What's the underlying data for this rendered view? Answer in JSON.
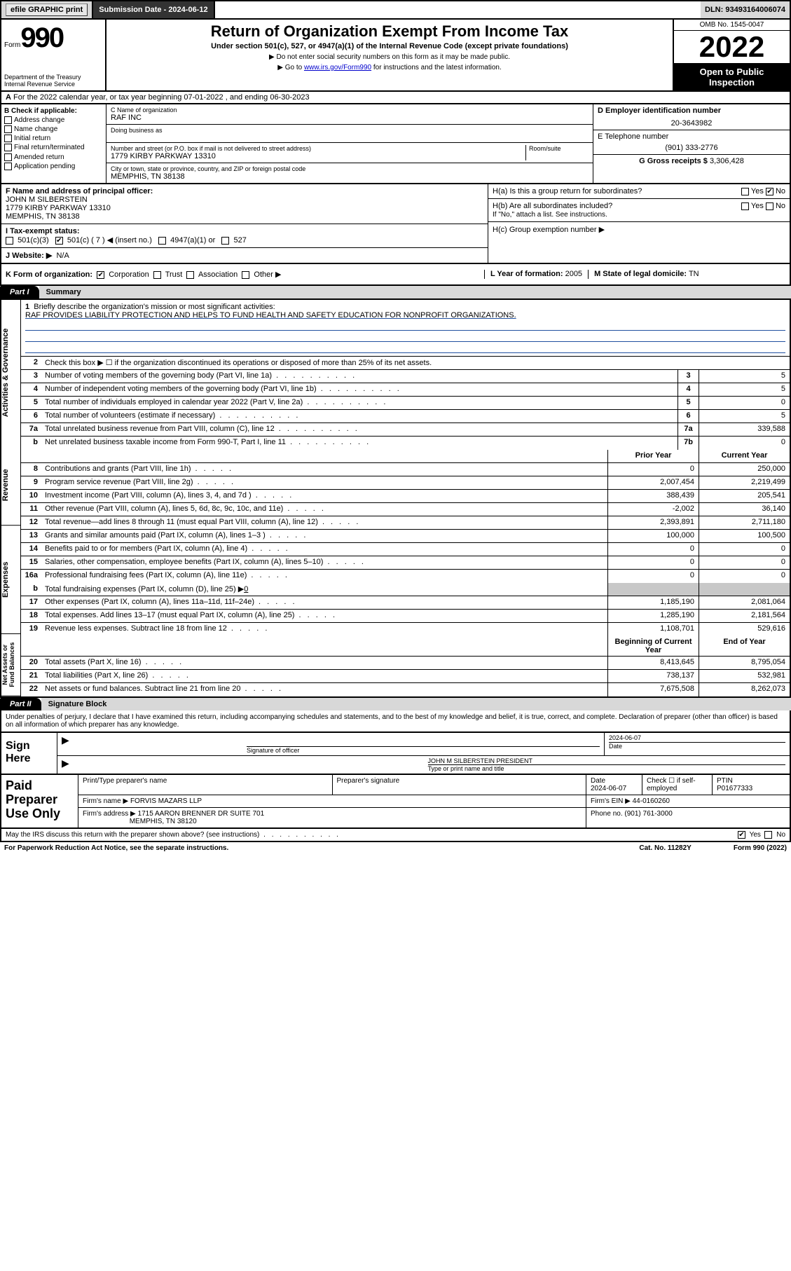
{
  "topbar": {
    "efile": "efile GRAPHIC print",
    "submission_label": "Submission Date - 2024-06-12",
    "dln": "DLN: 93493164006074"
  },
  "header": {
    "form_word": "Form",
    "form_num": "990",
    "dept": "Department of the Treasury",
    "irs": "Internal Revenue Service",
    "title": "Return of Organization Exempt From Income Tax",
    "sub1": "Under section 501(c), 527, or 4947(a)(1) of the Internal Revenue Code (except private foundations)",
    "sub2": "▶ Do not enter social security numbers on this form as it may be made public.",
    "sub3_pre": "▶ Go to ",
    "sub3_link": "www.irs.gov/Form990",
    "sub3_post": " for instructions and the latest information.",
    "omb": "OMB No. 1545-0047",
    "year": "2022",
    "open": "Open to Public Inspection"
  },
  "rowA": {
    "label": "A",
    "text": "For the 2022 calendar year, or tax year beginning 07-01-2022   , and ending 06-30-2023"
  },
  "colB": {
    "label": "B Check if applicable:",
    "opts": [
      "Address change",
      "Name change",
      "Initial return",
      "Final return/terminated",
      "Amended return",
      "Application pending"
    ]
  },
  "colC": {
    "name_label": "C Name of organization",
    "name": "RAF INC",
    "dba_label": "Doing business as",
    "addr_label": "Number and street (or P.O. box if mail is not delivered to street address)",
    "room_label": "Room/suite",
    "addr": "1779 KIRBY PARKWAY 13310",
    "city_label": "City or town, state or province, country, and ZIP or foreign postal code",
    "city": "MEMPHIS, TN  38138"
  },
  "colD": {
    "ein_label": "D Employer identification number",
    "ein": "20-3643982",
    "phone_label": "E Telephone number",
    "phone": "(901) 333-2776",
    "gross_label": "G Gross receipts $",
    "gross": "3,306,428"
  },
  "rowF": {
    "label": "F  Name and address of principal officer:",
    "name": "JOHN M SILBERSTEIN",
    "addr1": "1779 KIRBY PARKWAY 13310",
    "addr2": "MEMPHIS, TN  38138"
  },
  "rowH": {
    "ha_label": "H(a)  Is this a group return for subordinates?",
    "hb_label": "H(b)  Are all subordinates included?",
    "hb_note": "If \"No,\" attach a list. See instructions.",
    "hc_label": "H(c)  Group exemption number ▶"
  },
  "rowI": {
    "label": "I  Tax-exempt status:",
    "opt1": "501(c)(3)",
    "opt2": "501(c) ( 7 ) ◀ (insert no.)",
    "opt3": "4947(a)(1) or",
    "opt4": "527"
  },
  "rowJ": {
    "label": "J  Website: ▶",
    "val": "N/A"
  },
  "rowK": {
    "label": "K Form of organization:",
    "opts": [
      "Corporation",
      "Trust",
      "Association",
      "Other ▶"
    ],
    "L_label": "L Year of formation:",
    "L_val": "2005",
    "M_label": "M State of legal domicile:",
    "M_val": "TN"
  },
  "part1": {
    "tab": "Part I",
    "title": "Summary"
  },
  "brief": {
    "num": "1",
    "label": "Briefly describe the organization's mission or most significant activities:",
    "mission": "RAF PROVIDES LIABILITY PROTECTION AND HELPS TO FUND HEALTH AND SAFETY EDUCATION FOR NONPROFIT ORGANIZATIONS."
  },
  "line2": {
    "num": "2",
    "text": "Check this box ▶ ☐  if the organization discontinued its operations or disposed of more than 25% of its net assets."
  },
  "vlabels": {
    "gov": "Activities & Governance",
    "rev": "Revenue",
    "exp": "Expenses",
    "net": "Net Assets or Fund Balances"
  },
  "rows_single": [
    {
      "n": "3",
      "d": "Number of voting members of the governing body (Part VI, line 1a)",
      "box": "3",
      "v": "5"
    },
    {
      "n": "4",
      "d": "Number of independent voting members of the governing body (Part VI, line 1b)",
      "box": "4",
      "v": "5"
    },
    {
      "n": "5",
      "d": "Total number of individuals employed in calendar year 2022 (Part V, line 2a)",
      "box": "5",
      "v": "0"
    },
    {
      "n": "6",
      "d": "Total number of volunteers (estimate if necessary)",
      "box": "6",
      "v": "5"
    },
    {
      "n": "7a",
      "d": "Total unrelated business revenue from Part VIII, column (C), line 12",
      "box": "7a",
      "v": "339,588"
    },
    {
      "n": "b",
      "d": "Net unrelated business taxable income from Form 990-T, Part I, line 11",
      "box": "7b",
      "v": "0"
    }
  ],
  "colhdr": {
    "prior": "Prior Year",
    "current": "Current Year"
  },
  "rows_double": [
    {
      "sec": "rev",
      "n": "8",
      "d": "Contributions and grants (Part VIII, line 1h)",
      "p": "0",
      "c": "250,000"
    },
    {
      "sec": "rev",
      "n": "9",
      "d": "Program service revenue (Part VIII, line 2g)",
      "p": "2,007,454",
      "c": "2,219,499"
    },
    {
      "sec": "rev",
      "n": "10",
      "d": "Investment income (Part VIII, column (A), lines 3, 4, and 7d )",
      "p": "388,439",
      "c": "205,541"
    },
    {
      "sec": "rev",
      "n": "11",
      "d": "Other revenue (Part VIII, column (A), lines 5, 6d, 8c, 9c, 10c, and 11e)",
      "p": "-2,002",
      "c": "36,140"
    },
    {
      "sec": "rev",
      "n": "12",
      "d": "Total revenue—add lines 8 through 11 (must equal Part VIII, column (A), line 12)",
      "p": "2,393,891",
      "c": "2,711,180"
    },
    {
      "sec": "exp",
      "n": "13",
      "d": "Grants and similar amounts paid (Part IX, column (A), lines 1–3 )",
      "p": "100,000",
      "c": "100,500"
    },
    {
      "sec": "exp",
      "n": "14",
      "d": "Benefits paid to or for members (Part IX, column (A), line 4)",
      "p": "0",
      "c": "0"
    },
    {
      "sec": "exp",
      "n": "15",
      "d": "Salaries, other compensation, employee benefits (Part IX, column (A), lines 5–10)",
      "p": "0",
      "c": "0"
    },
    {
      "sec": "exp",
      "n": "16a",
      "d": "Professional fundraising fees (Part IX, column (A), line 11e)",
      "p": "0",
      "c": "0"
    }
  ],
  "row16b": {
    "n": "b",
    "d": "Total fundraising expenses (Part IX, column (D), line 25) ▶",
    "v": "0"
  },
  "rows_double2": [
    {
      "sec": "exp",
      "n": "17",
      "d": "Other expenses (Part IX, column (A), lines 11a–11d, 11f–24e)",
      "p": "1,185,190",
      "c": "2,081,064"
    },
    {
      "sec": "exp",
      "n": "18",
      "d": "Total expenses. Add lines 13–17 (must equal Part IX, column (A), line 25)",
      "p": "1,285,190",
      "c": "2,181,564"
    },
    {
      "sec": "exp",
      "n": "19",
      "d": "Revenue less expenses. Subtract line 18 from line 12",
      "p": "1,108,701",
      "c": "529,616"
    }
  ],
  "colhdr2": {
    "begin": "Beginning of Current Year",
    "end": "End of Year"
  },
  "rows_net": [
    {
      "n": "20",
      "d": "Total assets (Part X, line 16)",
      "p": "8,413,645",
      "c": "8,795,054"
    },
    {
      "n": "21",
      "d": "Total liabilities (Part X, line 26)",
      "p": "738,137",
      "c": "532,981"
    },
    {
      "n": "22",
      "d": "Net assets or fund balances. Subtract line 21 from line 20",
      "p": "7,675,508",
      "c": "8,262,073"
    }
  ],
  "part2": {
    "tab": "Part II",
    "title": "Signature Block"
  },
  "sig": {
    "penalties": "Under penalties of perjury, I declare that I have examined this return, including accompanying schedules and statements, and to the best of my knowledge and belief, it is true, correct, and complete. Declaration of preparer (other than officer) is based on all information of which preparer has any knowledge.",
    "sign_here": "Sign Here",
    "sig_officer": "Signature of officer",
    "date": "2024-06-07",
    "date_label": "Date",
    "name_title": "JOHN M SILBERSTEIN  PRESIDENT",
    "name_label": "Type or print name and title"
  },
  "prep": {
    "label": "Paid Preparer Use Only",
    "h1": "Print/Type preparer's name",
    "h2": "Preparer's signature",
    "h3": "Date",
    "date": "2024-06-07",
    "h4": "Check ☐ if self-employed",
    "h5": "PTIN",
    "ptin": "P01677333",
    "firm_label": "Firm's name    ▶",
    "firm": "FORVIS MAZARS LLP",
    "ein_label": "Firm's EIN ▶",
    "ein": "44-0160260",
    "addr_label": "Firm's address ▶",
    "addr1": "1715 AARON BRENNER DR SUITE 701",
    "addr2": "MEMPHIS, TN  38120",
    "phone_label": "Phone no.",
    "phone": "(901) 761-3000"
  },
  "footer": {
    "discuss": "May the IRS discuss this return with the preparer shown above? (see instructions)",
    "paperwork": "For Paperwork Reduction Act Notice, see the separate instructions.",
    "cat": "Cat. No. 11282Y",
    "form": "Form 990 (2022)"
  }
}
